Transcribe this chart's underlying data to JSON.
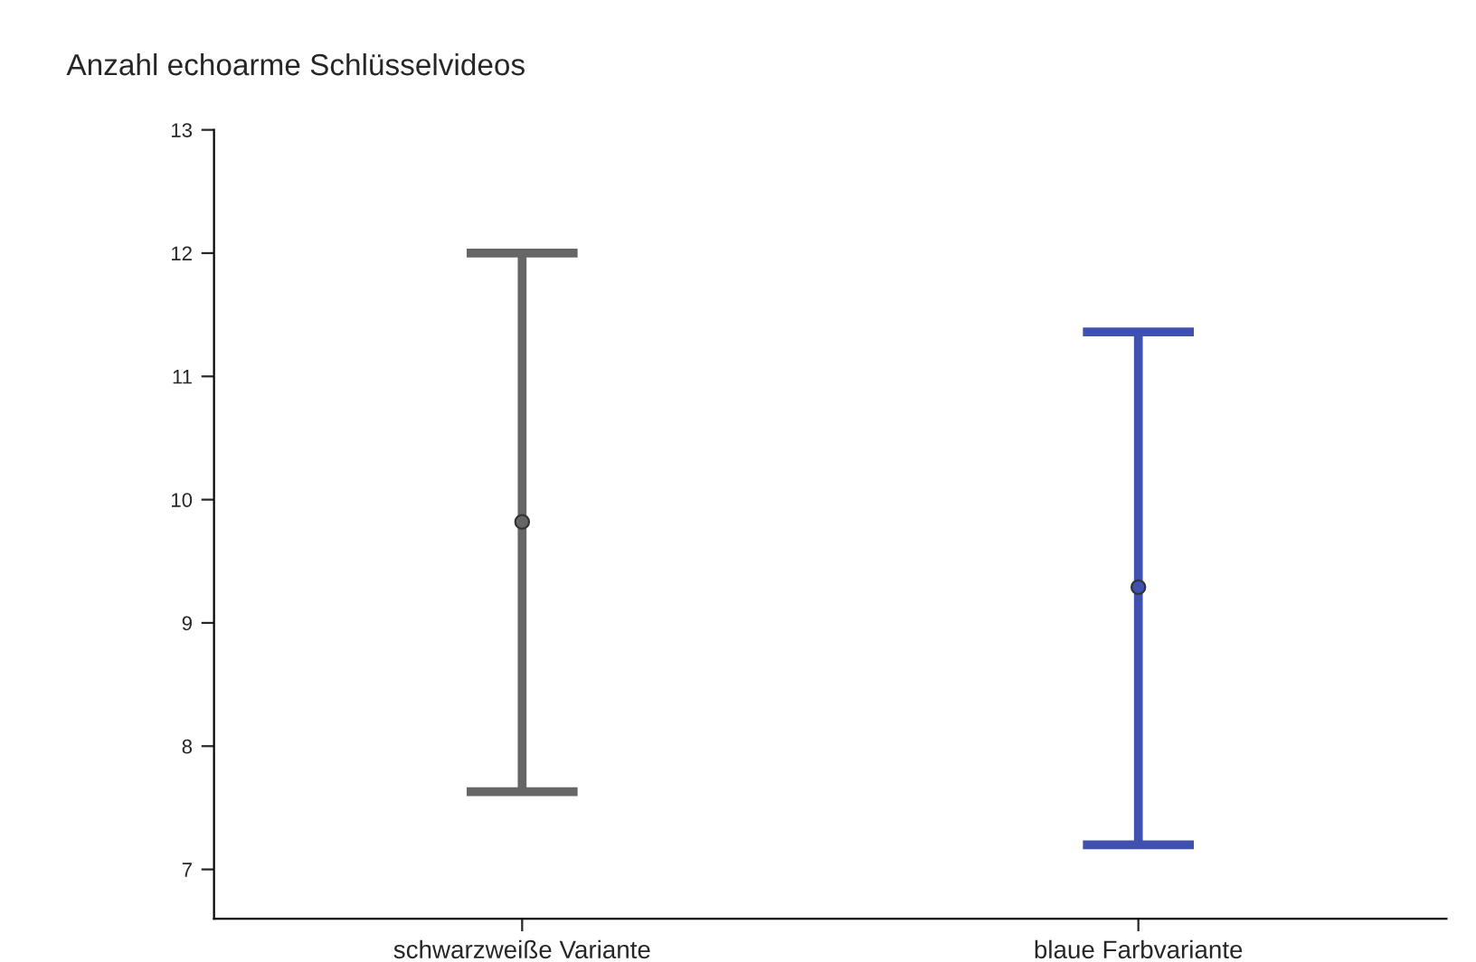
{
  "chart_data": {
    "type": "scatter",
    "title": "Anzahl echoarme Schlüsselvideos",
    "categories": [
      "schwarzweiße Variante",
      "blaue Farbvariante"
    ],
    "values": [
      9.82,
      9.29
    ],
    "errors": [
      [
        7.63,
        12.0
      ],
      [
        7.2,
        11.36
      ]
    ],
    "colors": [
      "#666666",
      "#3f51b0"
    ],
    "marker": "circle",
    "ylim": [
      6.6,
      13
    ],
    "yticks": [
      7,
      8,
      9,
      10,
      11,
      12,
      13
    ],
    "grid": false,
    "legend": false
  }
}
